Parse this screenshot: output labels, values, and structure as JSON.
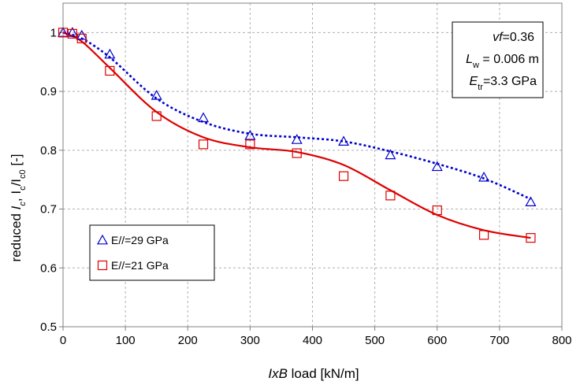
{
  "chart_data": {
    "type": "scatter",
    "xlabel": {
      "italic": "IxB",
      "rest": " load  [kN/m]"
    },
    "ylabel": {
      "prefix": "reduced ",
      "ic": "I",
      "ic_sub": "c",
      "mid": ", I",
      "sub1": "c",
      "slash": "/I",
      "sub2": "c0",
      "suffix": " [-]"
    },
    "xlim": [
      0,
      800
    ],
    "ylim": [
      0.5,
      1.05
    ],
    "x_ticks": [
      0,
      100,
      200,
      300,
      400,
      500,
      600,
      700,
      800
    ],
    "y_ticks": [
      0.5,
      0.6,
      0.7,
      0.8,
      0.9,
      1.0
    ],
    "x_tick_labels": [
      "0",
      "100",
      "200",
      "300",
      "400",
      "500",
      "600",
      "700",
      "800"
    ],
    "y_tick_labels": [
      "0.5",
      "0.6",
      "0.7",
      "0.8",
      "0.9",
      "1"
    ],
    "grid": true,
    "legend_position": "bottom-left",
    "series": [
      {
        "name": "E//=29 GPa",
        "marker": "triangle",
        "color": "#0000cc",
        "line_style": "dotted",
        "x": [
          0,
          15,
          30,
          75,
          150,
          225,
          300,
          375,
          450,
          525,
          600,
          675,
          750
        ],
        "y": [
          1.0,
          1.0,
          0.995,
          0.963,
          0.893,
          0.855,
          0.825,
          0.818,
          0.815,
          0.792,
          0.772,
          0.754,
          0.712
        ],
        "fit_x": [
          0,
          30,
          75,
          150,
          225,
          300,
          375,
          450,
          525,
          600,
          675,
          750
        ],
        "fit_y": [
          1.0,
          0.99,
          0.958,
          0.888,
          0.848,
          0.828,
          0.822,
          0.815,
          0.798,
          0.777,
          0.752,
          0.717
        ]
      },
      {
        "name": "E//=21 GPa",
        "marker": "square",
        "color": "#dd0000",
        "line_style": "solid",
        "x": [
          0,
          15,
          30,
          75,
          150,
          225,
          300,
          375,
          450,
          525,
          600,
          675,
          750
        ],
        "y": [
          1.0,
          0.998,
          0.99,
          0.935,
          0.858,
          0.81,
          0.81,
          0.795,
          0.756,
          0.723,
          0.698,
          0.656,
          0.651
        ],
        "fit_x": [
          0,
          30,
          75,
          150,
          225,
          300,
          375,
          450,
          525,
          600,
          675,
          750
        ],
        "fit_y": [
          1.0,
          0.985,
          0.94,
          0.865,
          0.822,
          0.805,
          0.797,
          0.775,
          0.732,
          0.69,
          0.664,
          0.651
        ]
      }
    ],
    "annotation": {
      "line1_italic": "vf",
      "line1_rest": "=0.36",
      "line2_italic": "L",
      "line2_sub": "w",
      "line2_rest": " = 0.006 m",
      "line3_italic": "E",
      "line3_sub": "tr",
      "line3_rest": "=3.3 GPa"
    }
  }
}
